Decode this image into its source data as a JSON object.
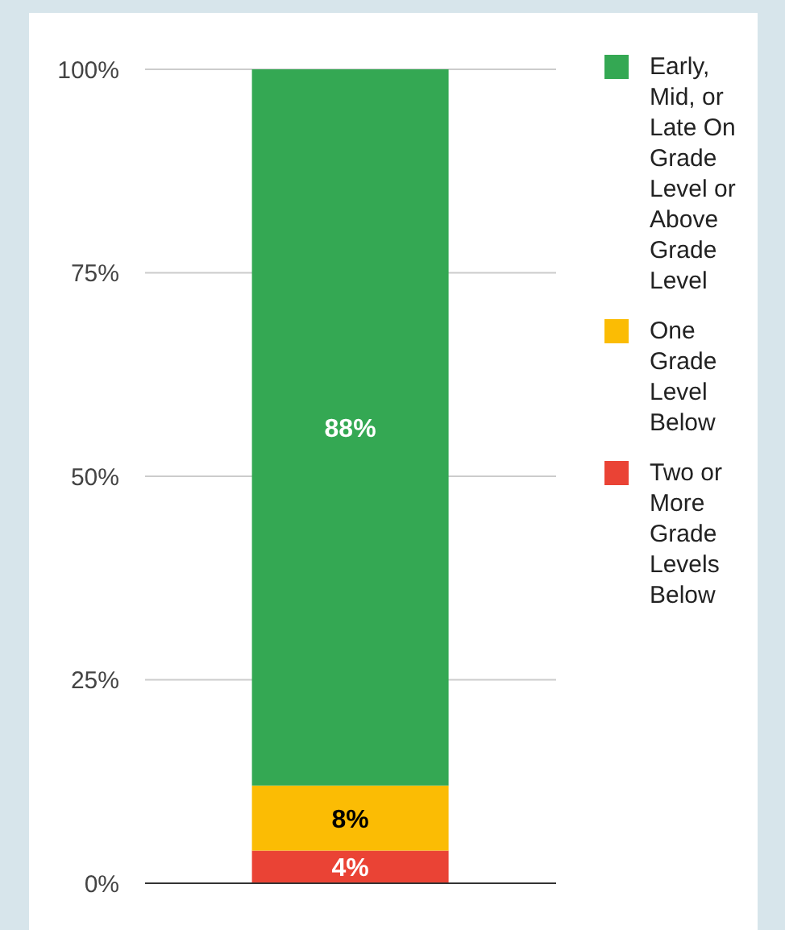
{
  "chart_data": {
    "type": "bar",
    "stacked": true,
    "categories": [
      null
    ],
    "series": [
      {
        "name": "Two or More Grade Levels Below",
        "color": "#ea4335",
        "values": [
          4
        ],
        "value_labels": [
          "4%"
        ]
      },
      {
        "name": "One Grade Level Below",
        "color": "#fbbc04",
        "values": [
          8
        ],
        "value_labels": [
          "8%"
        ]
      },
      {
        "name": "Early, Mid, or Late On Grade Level or Above Grade Level",
        "color": "#34a853",
        "values": [
          88
        ],
        "value_labels": [
          "88%"
        ]
      }
    ],
    "ylim": [
      0,
      100
    ],
    "yticks": [
      {
        "value": 0,
        "label": "0%"
      },
      {
        "value": 25,
        "label": "25%"
      },
      {
        "value": 50,
        "label": "50%"
      },
      {
        "value": 75,
        "label": "75%"
      },
      {
        "value": 100,
        "label": "100%"
      }
    ],
    "grid": "y",
    "legend": "top right",
    "tick_labels": "y"
  }
}
